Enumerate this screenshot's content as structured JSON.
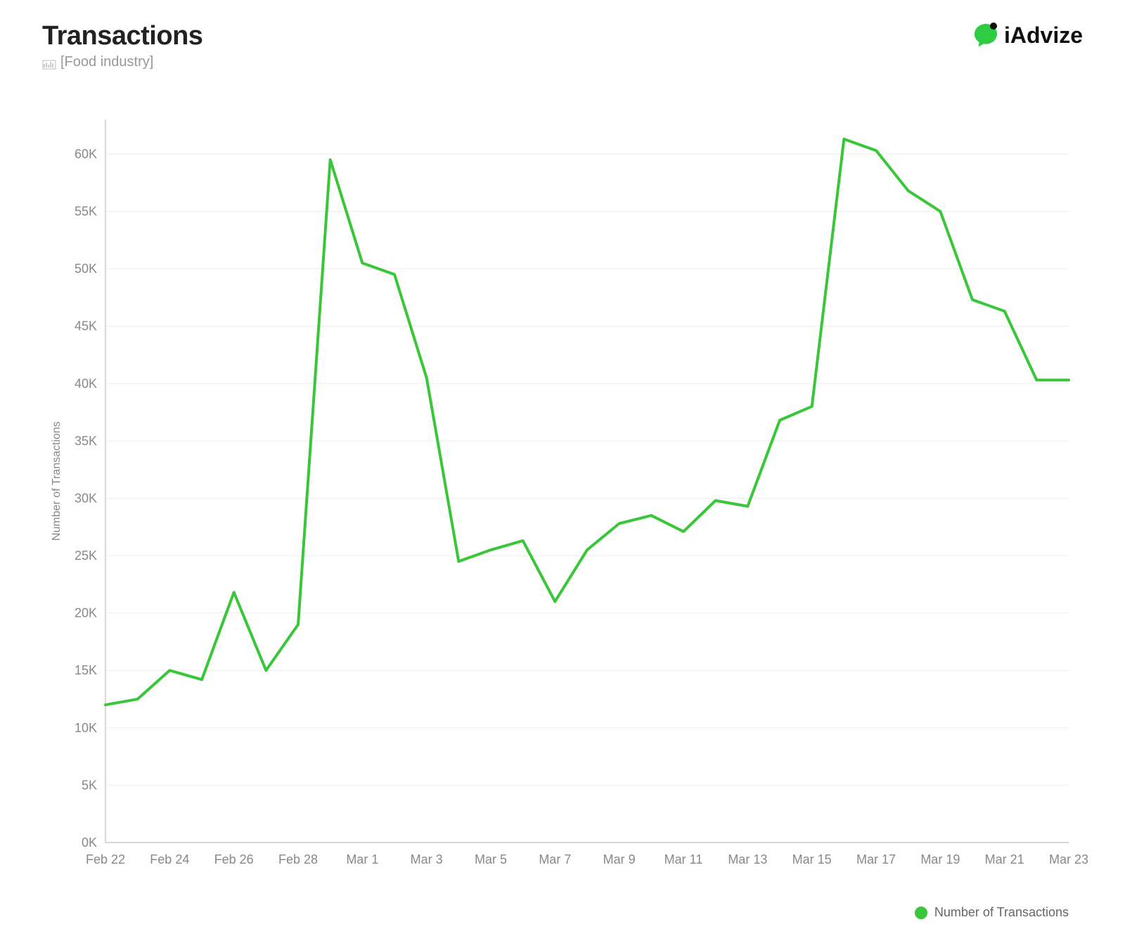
{
  "header": {
    "title": "Transactions",
    "subtitle": "[Food industry]"
  },
  "logo": {
    "text": "iAdvize",
    "icon_color": "#2ecc40",
    "dot_color": "#111111"
  },
  "chart": {
    "type": "line",
    "y_axis_label": "Number of Transactions",
    "y_ticks": [
      "0K",
      "5K",
      "10K",
      "15K",
      "20K",
      "25K",
      "30K",
      "35K",
      "40K",
      "45K",
      "50K",
      "55K",
      "60K"
    ],
    "y_values": [
      0,
      5,
      10,
      15,
      20,
      25,
      30,
      35,
      40,
      45,
      50,
      55,
      60
    ],
    "ylim": [
      0,
      63
    ],
    "x_ticks": [
      "Feb 22",
      "Feb 24",
      "Feb 26",
      "Feb 28",
      "Mar 1",
      "Mar 3",
      "Mar 5",
      "Mar 7",
      "Mar 9",
      "Mar 11",
      "Mar 13",
      "Mar 15",
      "Mar 17",
      "Mar 19",
      "Mar 21",
      "Mar 23"
    ],
    "x_indices": [
      0,
      2,
      4,
      6,
      8,
      10,
      12,
      14,
      16,
      18,
      20,
      22,
      24,
      26,
      28,
      30
    ],
    "series": [
      {
        "name": "Number of Transactions",
        "color": "#39c639",
        "line_width": 4,
        "x": [
          0,
          1,
          2,
          3,
          4,
          5,
          6,
          7,
          8,
          9,
          10,
          11,
          12,
          13,
          14,
          15,
          16,
          17,
          18,
          19,
          20,
          21,
          22,
          23,
          24,
          25,
          26,
          27,
          28,
          29,
          30
        ],
        "y": [
          12.0,
          12.5,
          15.0,
          14.2,
          21.8,
          15.0,
          19.0,
          59.5,
          50.5,
          49.5,
          40.5,
          24.5,
          25.5,
          26.3,
          21.0,
          25.5,
          27.8,
          28.5,
          27.1,
          29.8,
          29.3,
          36.8,
          38.0,
          61.3,
          60.3,
          56.8,
          55.0,
          47.3,
          46.3,
          40.3,
          40.3
        ]
      }
    ],
    "background_color": "#ffffff",
    "grid_color": "#eeeeee",
    "axis_color": "#cccccc",
    "tick_fontsize": 18,
    "label_fontsize": 16,
    "legend_label": "Number of Transactions",
    "legend_dot_color": "#39c639"
  }
}
